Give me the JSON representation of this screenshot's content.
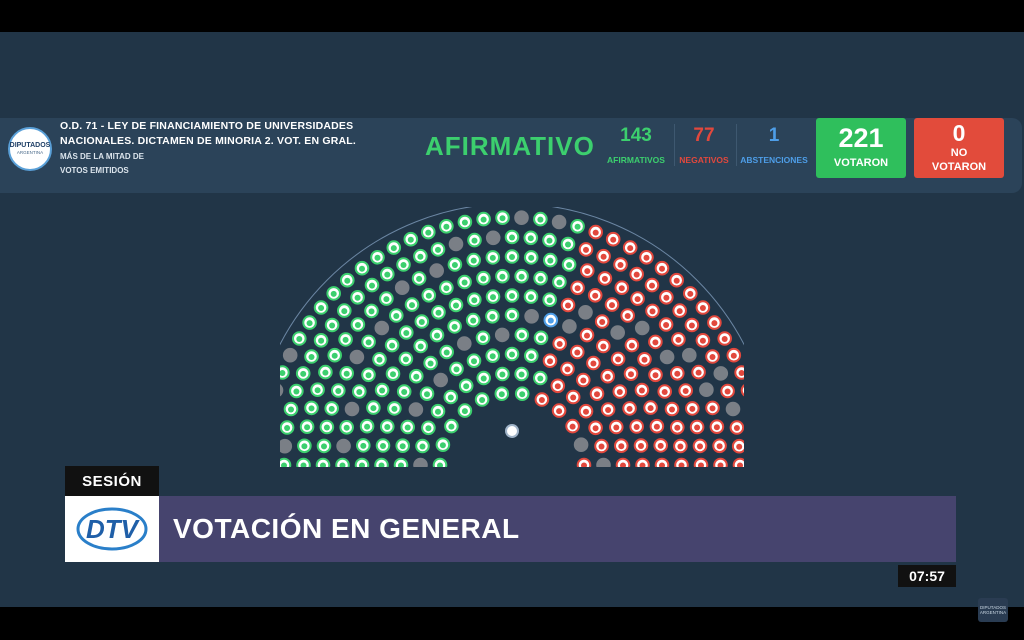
{
  "header": {
    "title_line1": "O.D. 71 - LEY DE FINANCIAMIENTO DE UNIVERSIDADES",
    "title_line2": "NACIONALES. DICTAMEN DE MINORIA 2. VOT. EN GRAL.",
    "majority_line1": "MÁS DE LA MITAD DE",
    "majority_line2": "VOTOS EMITIDOS",
    "logo_line1": "DIPUTADOS",
    "logo_line2": "ARGENTINA",
    "result": "AFIRMATIVO",
    "afirmativos": {
      "value": "143",
      "label": "AFIRMATIVOS"
    },
    "negativos": {
      "value": "77",
      "label": "NEGATIVOS"
    },
    "abstenciones": {
      "value": "1",
      "label": "ABSTENCIONES"
    },
    "votaron": {
      "value": "221",
      "label": "VOTARON"
    },
    "no_votaron": {
      "value": "0",
      "label_line1": "NO",
      "label_line2": "VOTARON"
    }
  },
  "hemicycle": {
    "rows": 10,
    "colors": {
      "afirmativo": "#3ccf6e",
      "negativo": "#e2483d",
      "abstencion": "#4e9ee8",
      "vacio": "#7a7f86"
    }
  },
  "lower_third": {
    "tag": "SESIÓN",
    "logo_text": "DTV",
    "title": "VOTACIÓN EN GENERAL"
  },
  "clock": "07:57",
  "watermark": "DIPUTADOS ARGENTINA"
}
